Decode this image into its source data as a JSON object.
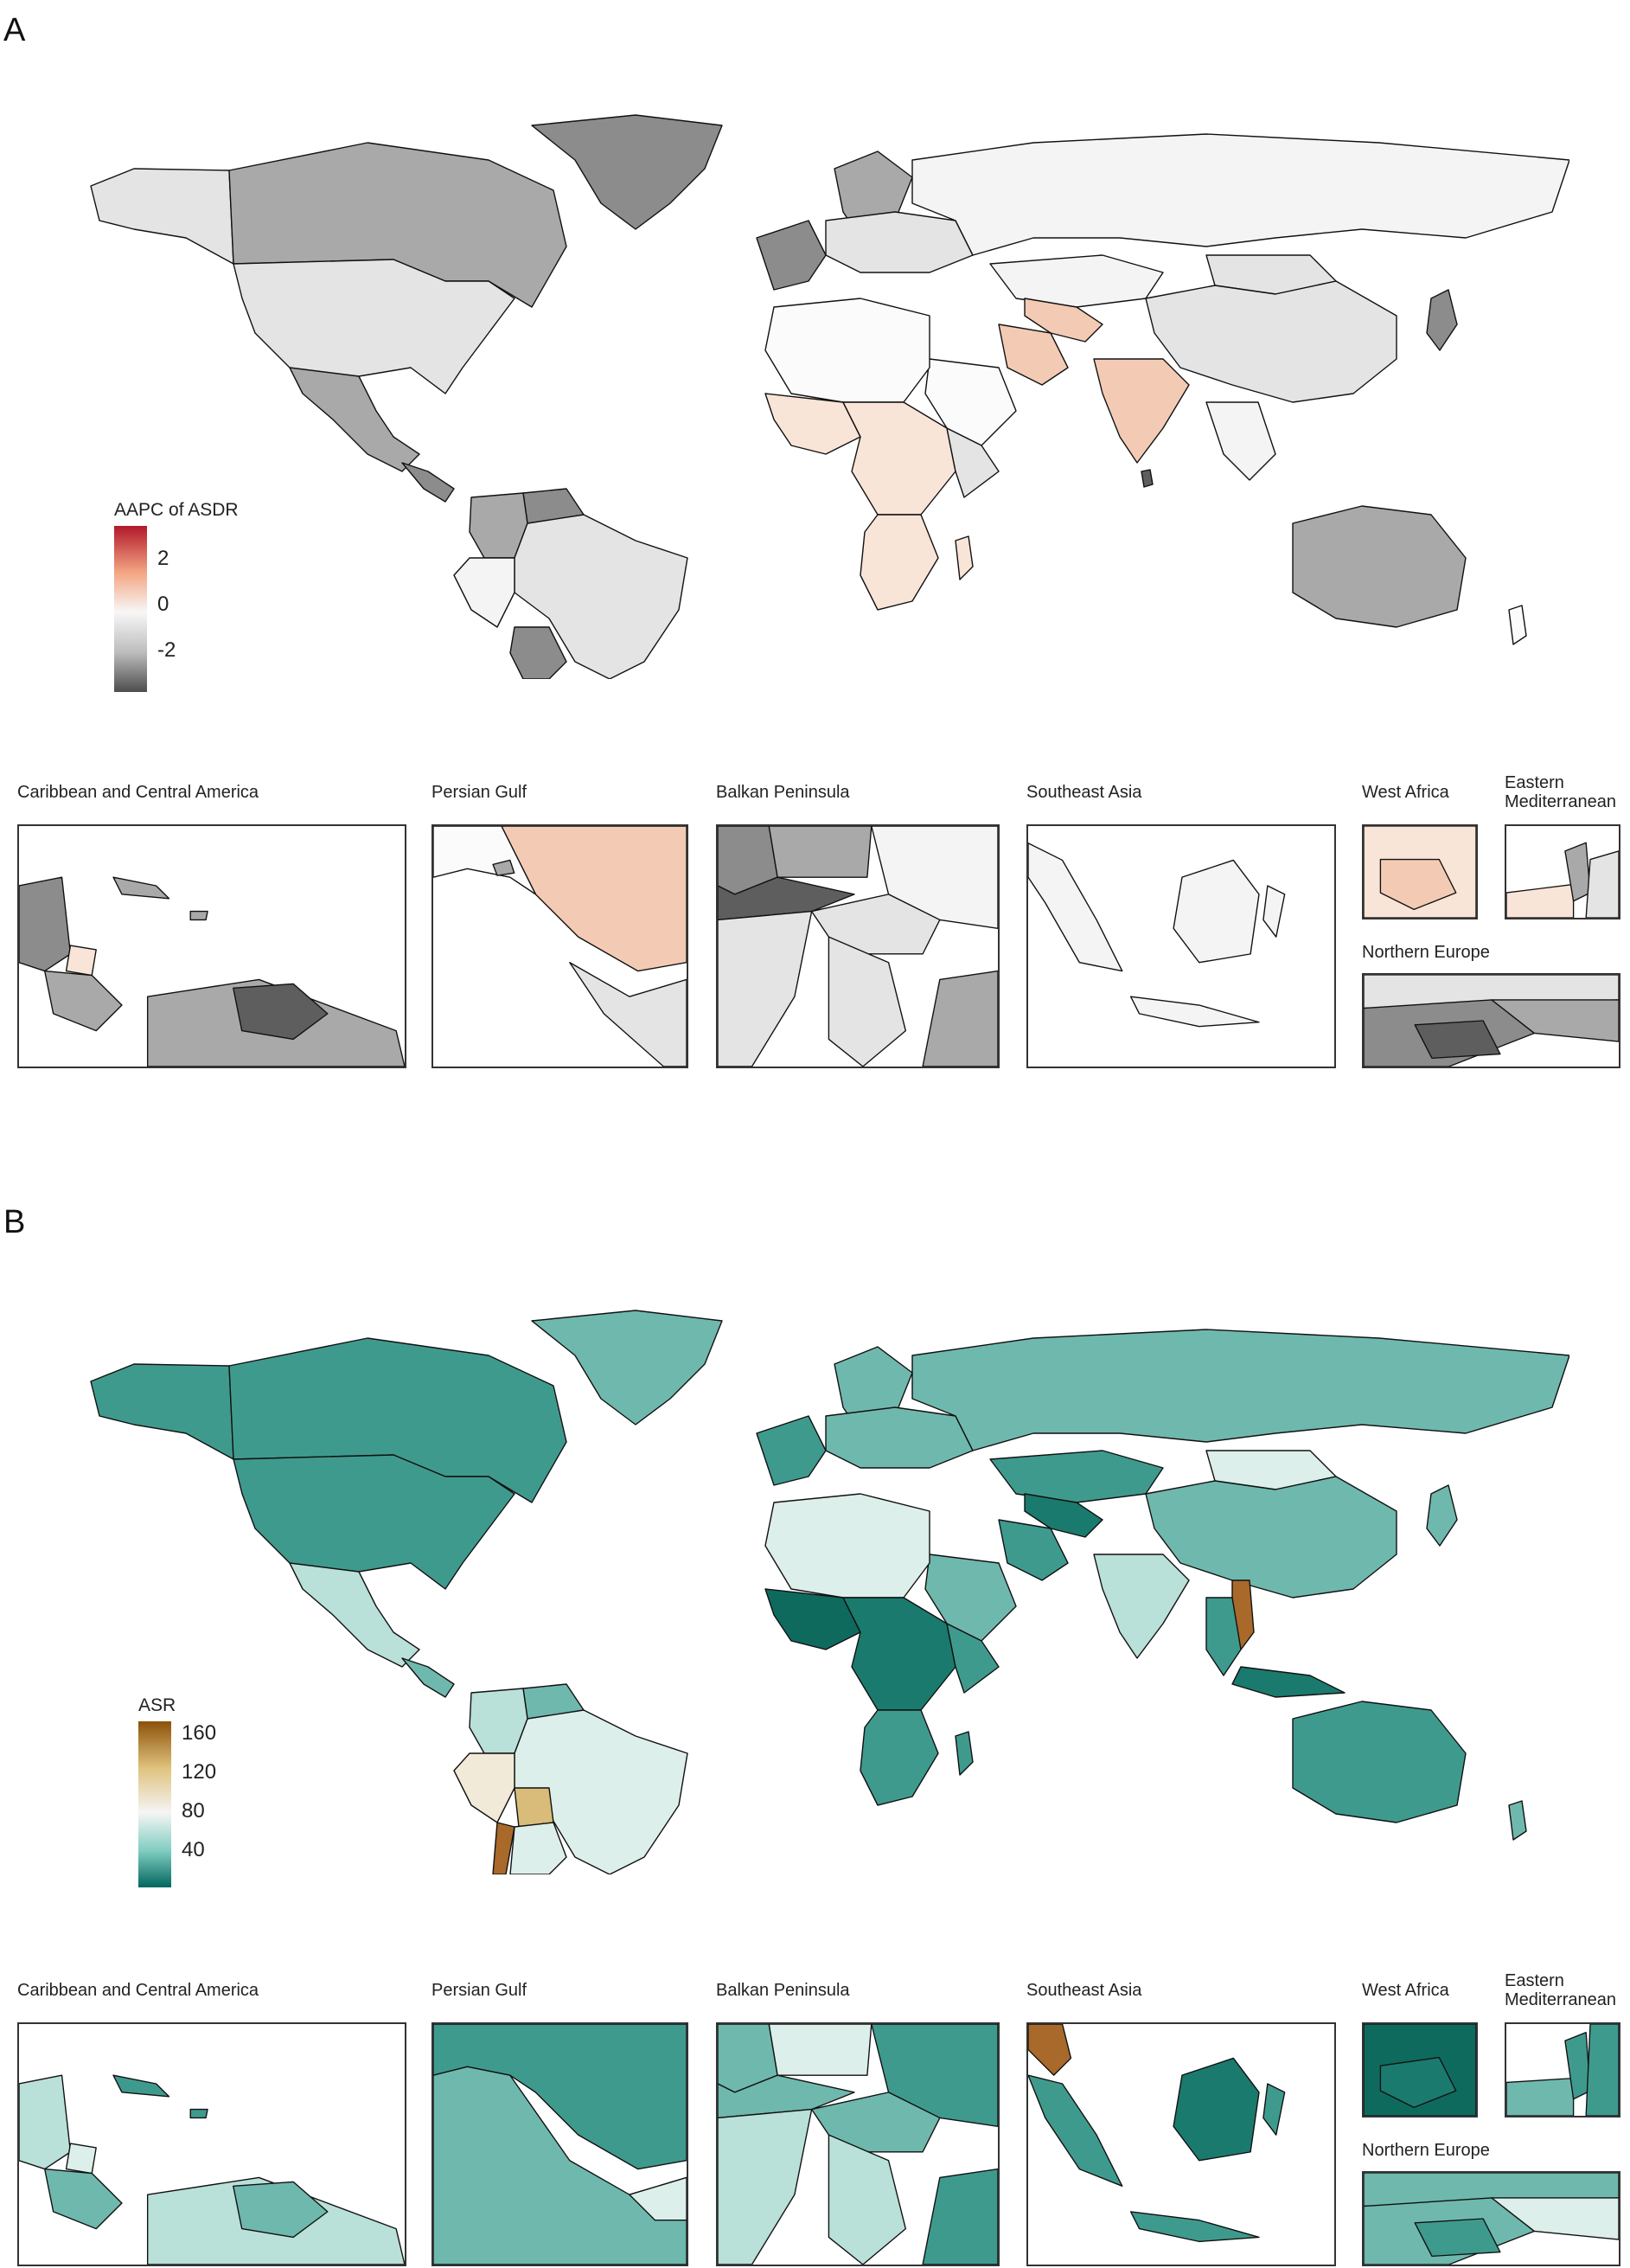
{
  "panelA": {
    "label": "A",
    "legend": {
      "title": "AAPC of ASDR",
      "ticks": [
        "2",
        "0",
        "-2"
      ],
      "colors": [
        "#b2182b",
        "#f4a582",
        "#f7f7f7",
        "#bdbdbd",
        "#4d4d4d"
      ]
    },
    "colors": {
      "darkgray": "#8c8c8c",
      "midgray": "#a9a9a9",
      "lightgray": "#e4e4e4",
      "nearwhite": "#f4f4f4",
      "white": "#fbfbfb",
      "peach": "#f3cbb4",
      "lightpeach": "#f9e4d8",
      "darkest": "#5e5e5e"
    },
    "insets": [
      {
        "title": "Caribbean and Central America"
      },
      {
        "title": "Persian Gulf"
      },
      {
        "title": "Balkan Peninsula"
      },
      {
        "title": "Southeast Asia"
      },
      {
        "title": "West Africa"
      },
      {
        "title": "Eastern\nMediterranean"
      },
      {
        "title": "Northern Europe"
      }
    ]
  },
  "panelB": {
    "label": "B",
    "legend": {
      "title": "ASR",
      "ticks": [
        "160",
        "120",
        "80",
        "40"
      ],
      "colors": [
        "#8c510a",
        "#dfc27d",
        "#f5f5f5",
        "#80cdc1",
        "#01665e"
      ]
    },
    "colors": {
      "teal": "#6fb8ad",
      "midteal": "#3f9a8e",
      "darkteal": "#1a7a6d",
      "deepteal": "#0f6a5e",
      "lightteal": "#b9e0d9",
      "paleteal": "#dcefea",
      "tan": "#d9bc7a",
      "brown": "#a8692a",
      "cream": "#f1ead8"
    },
    "insets": [
      {
        "title": "Caribbean and Central America"
      },
      {
        "title": "Persian Gulf"
      },
      {
        "title": "Balkan Peninsula"
      },
      {
        "title": "Southeast Asia"
      },
      {
        "title": "West Africa"
      },
      {
        "title": "Eastern\nMediterranean"
      },
      {
        "title": "Northern Europe"
      }
    ]
  }
}
